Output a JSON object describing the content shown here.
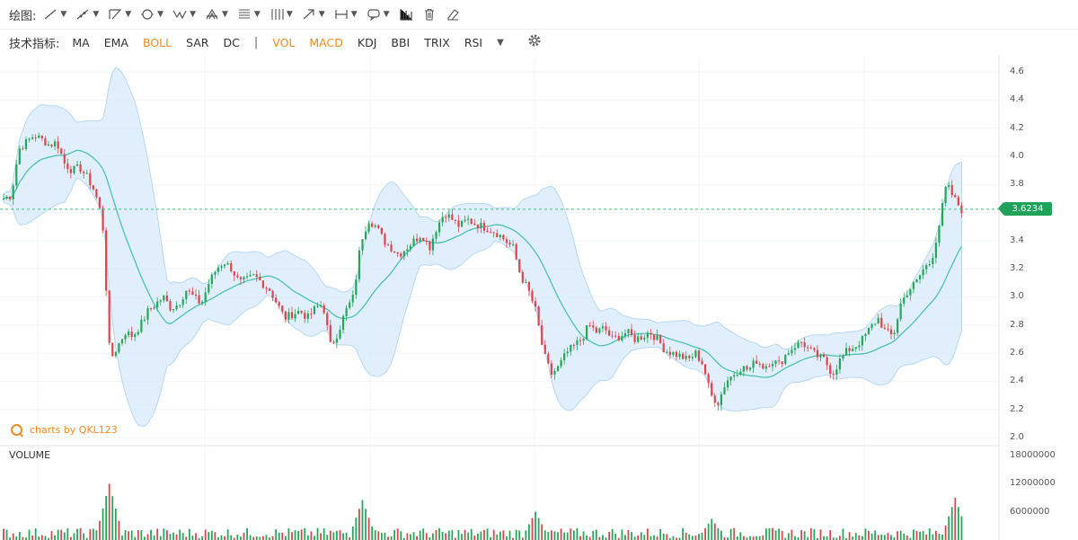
{
  "toolbar": {
    "draw_label": "绘图:",
    "tools": [
      "line-tool",
      "ray-tool",
      "channel-tool",
      "ellipse-tool",
      "pattern-tool",
      "pitchfork-tool",
      "fib-tool",
      "gann-tool",
      "arrow-tool",
      "measure-tool",
      "comment-tool",
      "volume-profile-tool",
      "trash-tool",
      "eraser-tool"
    ]
  },
  "indicators": {
    "label": "技术指标:",
    "main": [
      {
        "name": "MA",
        "active": false
      },
      {
        "name": "EMA",
        "active": false
      },
      {
        "name": "BOLL",
        "active": true
      },
      {
        "name": "SAR",
        "active": false
      },
      {
        "name": "DC",
        "active": false
      }
    ],
    "separator": "|",
    "sub": [
      {
        "name": "VOL",
        "active": true
      },
      {
        "name": "MACD",
        "active": true
      },
      {
        "name": "KDJ",
        "active": false
      },
      {
        "name": "BBI",
        "active": false
      },
      {
        "name": "TRIX",
        "active": false
      },
      {
        "name": "RSI",
        "active": false
      }
    ]
  },
  "chart_data": {
    "type": "candlestick",
    "indicator": "BOLL",
    "y_ticks": [
      "4.6",
      "4.4",
      "4.2",
      "4.0",
      "3.8",
      "3.6",
      "3.4",
      "3.2",
      "3.0",
      "2.8",
      "2.6",
      "2.4",
      "2.2",
      "2.0"
    ],
    "ylim": [
      2.0,
      4.6
    ],
    "current_price": "3.6234",
    "up_color": "#26a65b",
    "down_color": "#e0434b",
    "band_color": "#cfe6f8",
    "mid_color": "#3fbfa8",
    "price_path": [
      3.7,
      3.72,
      4.05,
      4.1,
      4.15,
      4.12,
      4.08,
      4.1,
      3.95,
      3.9,
      3.92,
      3.85,
      3.75,
      3.55,
      2.55,
      2.65,
      2.75,
      2.72,
      2.8,
      2.9,
      2.95,
      3.0,
      2.92,
      2.95,
      3.05,
      3.0,
      2.95,
      3.1,
      3.2,
      3.25,
      3.2,
      3.1,
      3.12,
      3.15,
      3.1,
      3.05,
      2.95,
      2.85,
      2.88,
      2.9,
      2.85,
      2.92,
      2.95,
      2.65,
      2.75,
      2.9,
      3.0,
      3.4,
      3.55,
      3.5,
      3.4,
      3.35,
      3.3,
      3.35,
      3.4,
      3.45,
      3.35,
      3.5,
      3.6,
      3.55,
      3.5,
      3.55,
      3.52,
      3.5,
      3.48,
      3.45,
      3.4,
      3.35,
      3.15,
      3.05,
      2.9,
      2.6,
      2.45,
      2.5,
      2.6,
      2.65,
      2.7,
      2.8,
      2.75,
      2.78,
      2.7,
      2.72,
      2.75,
      2.7,
      2.72,
      2.75,
      2.7,
      2.62,
      2.6,
      2.58,
      2.55,
      2.6,
      2.52,
      2.3,
      2.25,
      2.4,
      2.45,
      2.5,
      2.48,
      2.55,
      2.5,
      2.55,
      2.52,
      2.6,
      2.65,
      2.68,
      2.62,
      2.58,
      2.55,
      2.45,
      2.55,
      2.62,
      2.65,
      2.7,
      2.78,
      2.85,
      2.75,
      2.72,
      2.95,
      3.05,
      3.1,
      3.2,
      3.25,
      3.5,
      3.8,
      3.7,
      3.62
    ],
    "volume": {
      "label": "VOLUME",
      "y_ticks": [
        "18000000",
        "12000000",
        "6000000"
      ],
      "ylim": [
        0,
        18000000
      ],
      "spikes": [
        {
          "index": 14,
          "value": 12000000
        },
        {
          "index": 47,
          "value": 8500000
        },
        {
          "index": 70,
          "value": 6000000
        },
        {
          "index": 93,
          "value": 4500000
        },
        {
          "index": 125,
          "value": 9000000
        }
      ]
    }
  },
  "brand": {
    "text": "charts by QKL123"
  }
}
